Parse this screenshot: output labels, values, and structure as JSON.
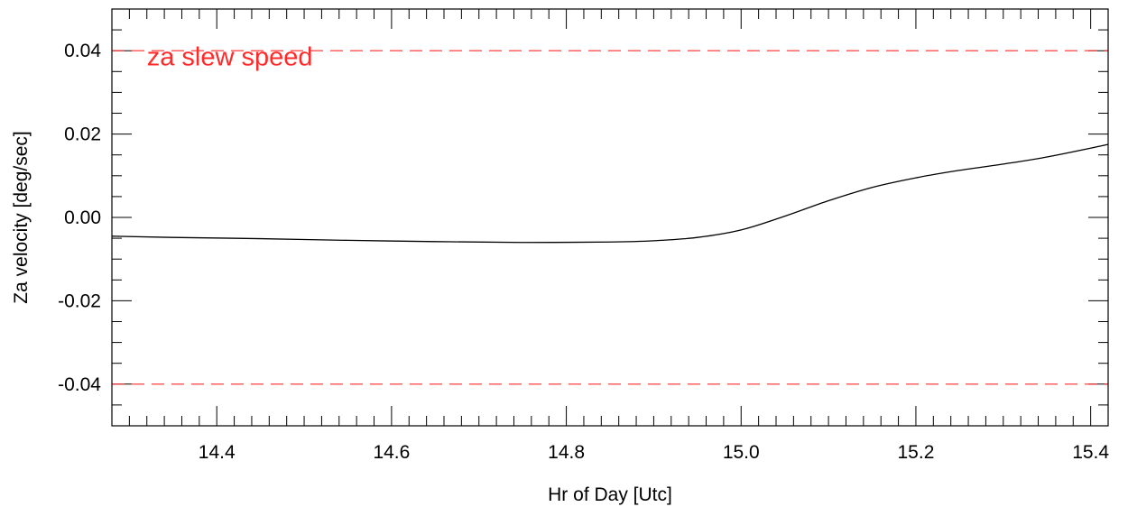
{
  "chart_data": {
    "type": "line",
    "xlabel": "Hr of Day [Utc]",
    "ylabel": "Za velocity [deg/sec]",
    "xlim": [
      14.28,
      15.42
    ],
    "ylim": [
      -0.05,
      0.05
    ],
    "x_ticks": [
      14.4,
      14.6,
      14.8,
      15.0,
      15.2,
      15.4
    ],
    "x_tick_labels": [
      "14.4",
      "14.6",
      "14.8",
      "15.0",
      "15.2",
      "15.4"
    ],
    "x_minor_step": 0.02,
    "y_ticks": [
      -0.04,
      -0.02,
      0.0,
      0.02,
      0.04
    ],
    "y_tick_labels": [
      "-0.04",
      "-0.02",
      "0.00",
      "0.02",
      "0.04"
    ],
    "y_minor_step": 0.005,
    "grid": false,
    "series": [
      {
        "color": "#000000",
        "x": [
          14.28,
          14.35,
          14.45,
          14.55,
          14.65,
          14.75,
          14.85,
          14.9,
          14.95,
          15.0,
          15.05,
          15.1,
          15.15,
          15.2,
          15.25,
          15.3,
          15.35,
          15.42
        ],
        "y": [
          -0.0045,
          -0.0048,
          -0.0051,
          -0.0055,
          -0.0058,
          -0.006,
          -0.0059,
          -0.0056,
          -0.0048,
          -0.003,
          0.0003,
          0.004,
          0.0072,
          0.0095,
          0.0113,
          0.0128,
          0.0145,
          0.0175
        ]
      }
    ],
    "reference_lines": [
      {
        "y": 0.04,
        "color": "#ff2a2a",
        "style": "dashed"
      },
      {
        "y": -0.04,
        "color": "#ff2a2a",
        "style": "dashed"
      }
    ],
    "annotations": [
      {
        "text": "za slew speed",
        "x": 14.32,
        "y": 0.0365,
        "color": "#ff2a2a"
      }
    ]
  }
}
